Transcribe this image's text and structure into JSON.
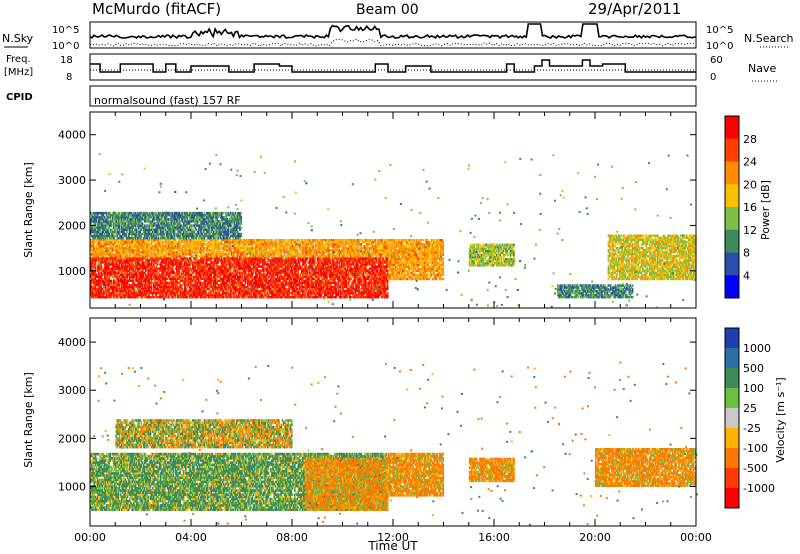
{
  "header": {
    "station": "McMurdo (fitACF)",
    "beam": "Beam 00",
    "date": "29/Apr/2011"
  },
  "noise_panel": {
    "left_label": "N.Sky",
    "left_ticks": [
      "10^5",
      "10^0"
    ],
    "right_label": "N.Search",
    "right_ticks": [
      "10^5",
      "10^0"
    ]
  },
  "freq_panel": {
    "left_label_1": "Freq.",
    "left_label_2": "[MHz]",
    "left_ticks": [
      "18",
      "8"
    ],
    "right_label": "Nave",
    "right_ticks": [
      "60",
      "0"
    ]
  },
  "cpid_panel": {
    "label": "CPID",
    "mode": "normalsound (fast) 157 RF"
  },
  "power_panel": {
    "ylabel": "Slant Range [km]",
    "cbar_label": "Power [dB]",
    "cbar_ticks": [
      "28",
      "24",
      "20",
      "16",
      "12",
      "8",
      "4"
    ]
  },
  "velocity_panel": {
    "ylabel": "Slant Range [km]",
    "cbar_label": "Velocity [m s⁻¹]",
    "cbar_ticks": [
      "1000",
      "500",
      "100",
      "25",
      "-25",
      "-100",
      "-500",
      "-1000"
    ]
  },
  "xaxis": {
    "label": "Time UT",
    "ticks": [
      "00:00",
      "04:00",
      "08:00",
      "12:00",
      "16:00",
      "20:00",
      "00:00"
    ]
  },
  "yaxis_ticks": [
    "4000",
    "3000",
    "2000",
    "1000"
  ],
  "colors": {
    "power": [
      "#0000ff",
      "#2b4fa8",
      "#3d8a5a",
      "#7cc04a",
      "#f5c000",
      "#ff8c00",
      "#ff4000",
      "#ff0000"
    ],
    "velocity": [
      "#1f3fb0",
      "#2e6ea8",
      "#3d8a5a",
      "#6cc040",
      "#c8c8c8",
      "#ffb000",
      "#ff7800",
      "#ff3a00",
      "#ff0000"
    ]
  },
  "chart_data": [
    {
      "type": "heatmap",
      "name": "Power",
      "x_range_hours": [
        0,
        24
      ],
      "y_range_km": [
        180,
        4500
      ],
      "colorbar_range_db": [
        0,
        30
      ],
      "bands": [
        {
          "t0": 0.0,
          "t1": 11.8,
          "r0": 400,
          "r1": 1300,
          "value": 28
        },
        {
          "t0": 0.0,
          "t1": 11.8,
          "r0": 1300,
          "r1": 1700,
          "value": 20
        },
        {
          "t0": 0.0,
          "t1": 6.0,
          "r0": 1700,
          "r1": 2300,
          "value": 8
        },
        {
          "t0": 11.8,
          "t1": 14.0,
          "r0": 800,
          "r1": 1700,
          "value": 20
        },
        {
          "t0": 15.0,
          "t1": 16.8,
          "r0": 1100,
          "r1": 1600,
          "value": 14
        },
        {
          "t0": 18.5,
          "t1": 21.5,
          "r0": 400,
          "r1": 700,
          "value": 8
        },
        {
          "t0": 20.5,
          "t1": 24.0,
          "r0": 800,
          "r1": 1800,
          "value": 16
        }
      ]
    },
    {
      "type": "heatmap",
      "name": "Velocity",
      "x_range_hours": [
        0,
        24
      ],
      "y_range_km": [
        180,
        4500
      ],
      "bands": [
        {
          "t0": 0.0,
          "t1": 11.8,
          "r0": 500,
          "r1": 1700,
          "value": 100
        },
        {
          "t0": 8.5,
          "t1": 11.8,
          "r0": 500,
          "r1": 1600,
          "value": -100
        },
        {
          "t0": 1.0,
          "t1": 8.0,
          "r0": 1800,
          "r1": 2400,
          "value": 0
        },
        {
          "t0": 11.8,
          "t1": 14.0,
          "r0": 800,
          "r1": 1700,
          "value": -100
        },
        {
          "t0": 15.0,
          "t1": 16.8,
          "r0": 1100,
          "r1": 1600,
          "value": -100
        },
        {
          "t0": 20.0,
          "t1": 24.0,
          "r0": 1000,
          "r1": 1800,
          "value": -100
        }
      ]
    }
  ]
}
